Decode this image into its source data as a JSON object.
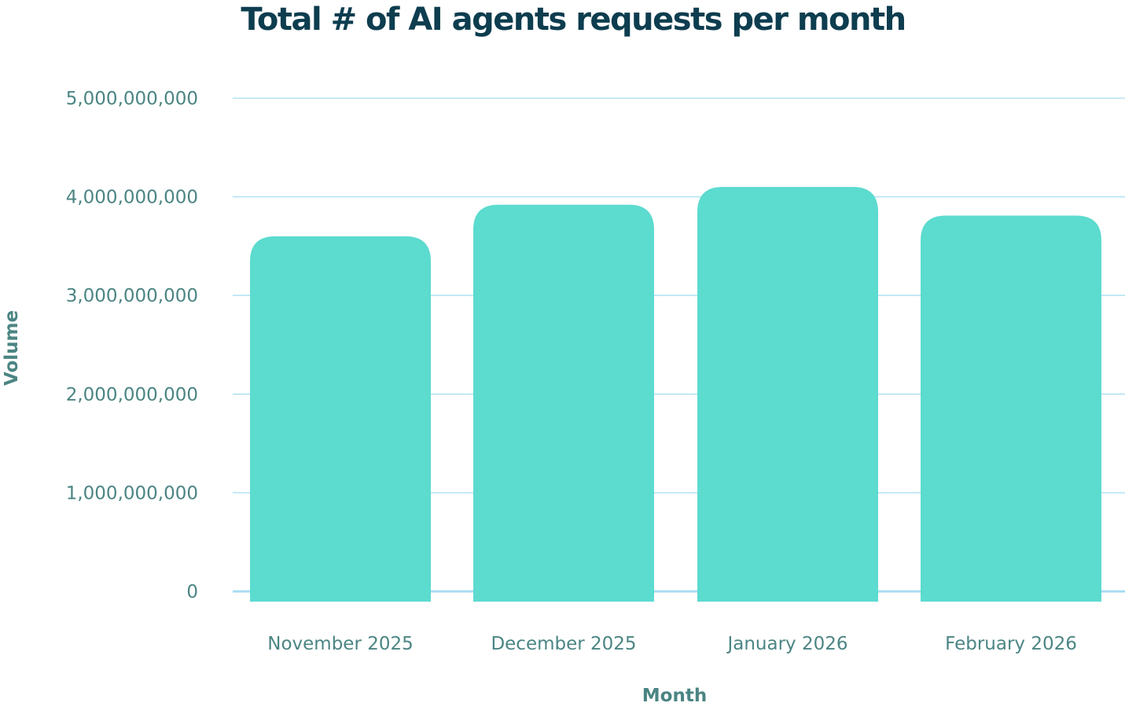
{
  "chart_data": {
    "type": "bar",
    "title": "Total # of AI agents requests per month",
    "xlabel": "Month",
    "ylabel": "Volume",
    "categories": [
      "November 2025",
      "December 2025",
      "January 2026",
      "February 2026"
    ],
    "values": [
      3600000000,
      3920000000,
      4100000000,
      3810000000
    ],
    "ylim": [
      0,
      5000000000
    ],
    "yticks": [
      0,
      1000000000,
      2000000000,
      3000000000,
      4000000000,
      5000000000
    ],
    "ytick_labels": [
      "0",
      "1,000,000,000",
      "2,000,000,000",
      "3,000,000,000",
      "4,000,000,000",
      "5,000,000,000"
    ],
    "grid": true,
    "legend": "none"
  },
  "colors": {
    "bar": "#5cdbcf",
    "grid": "#b4e4f2",
    "baseline": "#a8dcf4",
    "title": "#0d3d4f",
    "tick_text": "#4b8583",
    "axis_title": "#4b8583"
  }
}
